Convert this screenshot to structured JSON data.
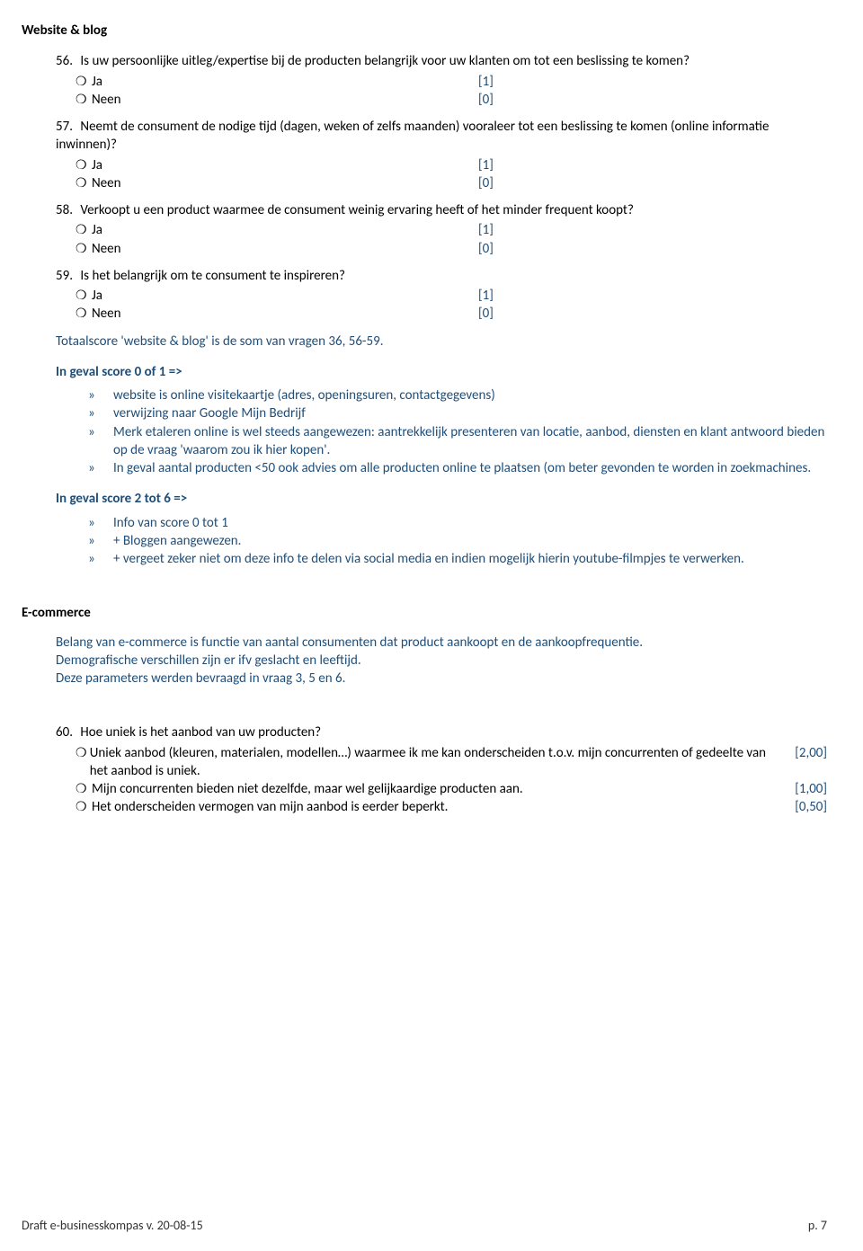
{
  "colors": {
    "blue": "#1f4e79",
    "black": "#000000",
    "bg": "#ffffff"
  },
  "section1_title": "Website & blog",
  "questions": [
    {
      "num": "56.",
      "text": "Is uw persoonlijke uitleg/expertise bij de producten belangrijk voor uw klanten om tot een beslissing te komen?",
      "opts": [
        {
          "label": "Ja",
          "score": "[1]"
        },
        {
          "label": "Neen",
          "score": "[0]"
        }
      ]
    },
    {
      "num": "57.",
      "text": "Neemt de consument de nodige tijd (dagen, weken of zelfs maanden) vooraleer tot een beslissing te komen (online informatie inwinnen)?",
      "opts": [
        {
          "label": "Ja",
          "score": "[1]"
        },
        {
          "label": "Neen",
          "score": "[0]"
        }
      ]
    },
    {
      "num": "58.",
      "text": "Verkoopt u een product waarmee de consument weinig ervaring heeft of het minder frequent koopt?",
      "opts": [
        {
          "label": "Ja",
          "score": "[1]"
        },
        {
          "label": "Neen",
          "score": "[0]"
        }
      ]
    },
    {
      "num": "59.",
      "text": "Is het belangrijk om te consument te inspireren?",
      "opts": [
        {
          "label": "Ja",
          "score": "[1]"
        },
        {
          "label": "Neen",
          "score": "[0]"
        }
      ]
    }
  ],
  "totalscore_note": "Totaalscore 'website & blog' is de som van vragen 36, 56-59.",
  "cond1_title": "In geval score 0 of 1 =>",
  "cond1_items": [
    "website is online visitekaartje (adres, openingsuren, contactgegevens)",
    "verwijzing naar Google Mijn Bedrijf",
    "Merk etaleren online is wel steeds aangewezen: aantrekkelijk presenteren van locatie, aanbod, diensten en klant antwoord bieden op de vraag 'waarom zou ik hier kopen'.",
    "In geval aantal producten <50 ook advies om alle producten online te plaatsen (om beter gevonden te worden in zoekmachines."
  ],
  "cond2_title": "In geval score 2 tot 6 =>",
  "cond2_items": [
    "Info van score 0 tot 1",
    "+ Bloggen aangewezen.",
    "+ vergeet zeker niet om deze info te delen via social media en indien mogelijk hierin youtube-filmpjes te verwerken."
  ],
  "section2_title": "E-commerce",
  "ecom_intro": [
    "Belang van e-commerce is functie van aantal consumenten dat product aankoopt en de aankoopfrequentie.",
    "Demografische verschillen zijn er ifv geslacht en leeftijd.",
    "Deze parameters werden bevraagd in vraag 3, 5 en 6."
  ],
  "q60": {
    "num": "60.",
    "text": "Hoe uniek is het aanbod van uw producten?",
    "opts": [
      {
        "label": "Uniek aanbod (kleuren, materialen, modellen…) waarmee ik me kan onderscheiden t.o.v. mijn concurrenten of gedeelte van het aanbod is uniek.",
        "score": "[2,00]"
      },
      {
        "label": "Mijn concurrenten bieden niet dezelfde, maar wel gelijkaardige producten aan.",
        "score": "[1,00]"
      },
      {
        "label": "Het onderscheiden vermogen van mijn aanbod is eerder beperkt.",
        "score": "[0,50]"
      }
    ]
  },
  "footer_left": "Draft e-businesskompas v. 20-08-15",
  "footer_right": "p. 7",
  "bullet_marker": "»",
  "radio_glyph": "❍"
}
